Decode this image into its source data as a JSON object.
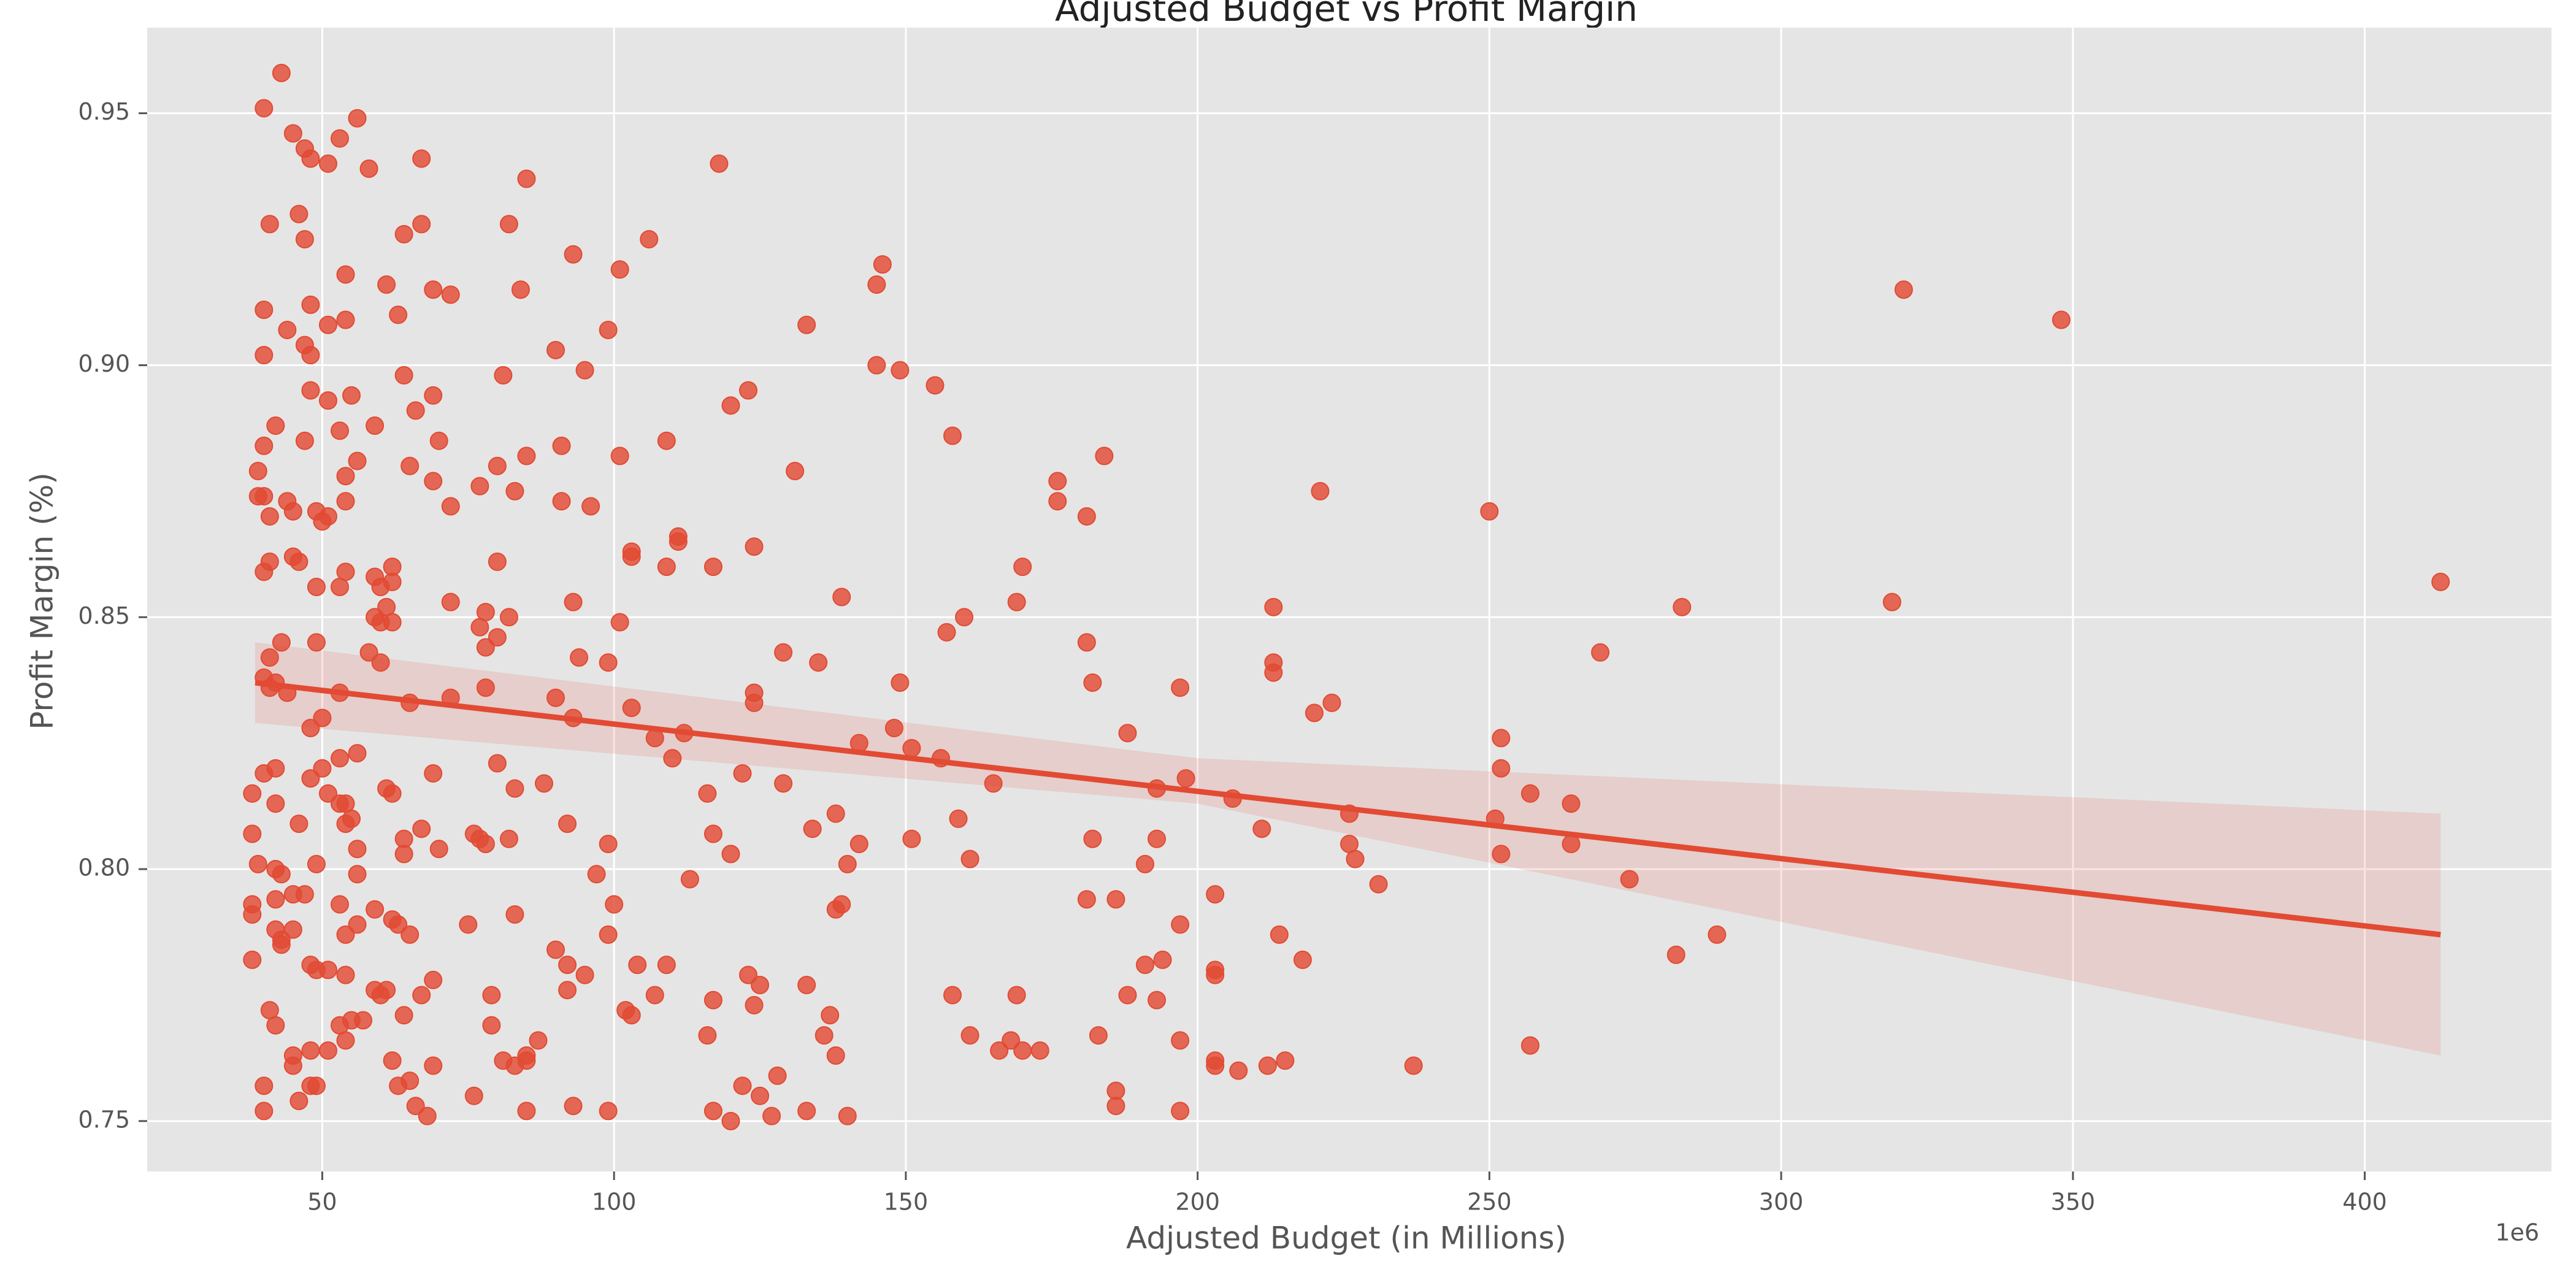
{
  "chart_data": {
    "type": "scatter",
    "title": "Adjusted Budget vs Profit Margin",
    "xlabel": "Adjusted Budget (in Millions)",
    "ylabel": "Profit Margin (%)",
    "x_offset_label": "1e6",
    "xlim": [
      20,
      432
    ],
    "ylim": [
      0.74,
      0.967
    ],
    "x_ticks": [
      50,
      100,
      150,
      200,
      250,
      300,
      350,
      400
    ],
    "y_ticks": [
      0.75,
      0.8,
      0.85,
      0.9,
      0.95
    ],
    "y_tick_labels": [
      "0.75",
      "0.80",
      "0.85",
      "0.90",
      "0.95"
    ],
    "grid": true,
    "colors": {
      "point": "#E24A33",
      "background": "#E5E5E5",
      "grid": "#FFFFFF",
      "band": "#E24A33"
    },
    "regression": {
      "x": [
        38.5,
        413
      ],
      "y": [
        0.837,
        0.787
      ],
      "ci_lower": [
        0.829,
        0.763
      ],
      "ci_upper": [
        0.845,
        0.811
      ],
      "ci_mid_x": 200,
      "ci_mid_lower": [
        0.813
      ],
      "ci_mid_upper": [
        0.822
      ]
    },
    "points": [
      [
        43,
        0.958
      ],
      [
        40,
        0.951
      ],
      [
        56,
        0.949
      ],
      [
        45,
        0.946
      ],
      [
        53,
        0.945
      ],
      [
        47,
        0.943
      ],
      [
        48,
        0.941
      ],
      [
        67,
        0.941
      ],
      [
        51,
        0.94
      ],
      [
        58,
        0.939
      ],
      [
        118,
        0.94
      ],
      [
        85,
        0.937
      ],
      [
        46,
        0.93
      ],
      [
        41,
        0.928
      ],
      [
        67,
        0.928
      ],
      [
        82,
        0.928
      ],
      [
        47,
        0.925
      ],
      [
        64,
        0.926
      ],
      [
        106,
        0.925
      ],
      [
        93,
        0.922
      ],
      [
        101,
        0.919
      ],
      [
        146,
        0.92
      ],
      [
        54,
        0.918
      ],
      [
        61,
        0.916
      ],
      [
        84,
        0.915
      ],
      [
        145,
        0.916
      ],
      [
        69,
        0.915
      ],
      [
        72,
        0.914
      ],
      [
        48,
        0.912
      ],
      [
        40,
        0.911
      ],
      [
        321,
        0.915
      ],
      [
        63,
        0.91
      ],
      [
        348,
        0.909
      ],
      [
        51,
        0.908
      ],
      [
        54,
        0.909
      ],
      [
        133,
        0.908
      ],
      [
        44,
        0.907
      ],
      [
        99,
        0.907
      ],
      [
        47,
        0.904
      ],
      [
        40,
        0.902
      ],
      [
        48,
        0.902
      ],
      [
        90,
        0.903
      ],
      [
        145,
        0.9
      ],
      [
        149,
        0.899
      ],
      [
        64,
        0.898
      ],
      [
        81,
        0.898
      ],
      [
        95,
        0.899
      ],
      [
        48,
        0.895
      ],
      [
        155,
        0.896
      ],
      [
        123,
        0.895
      ],
      [
        69,
        0.894
      ],
      [
        55,
        0.894
      ],
      [
        51,
        0.893
      ],
      [
        120,
        0.892
      ],
      [
        66,
        0.891
      ],
      [
        42,
        0.888
      ],
      [
        59,
        0.888
      ],
      [
        53,
        0.887
      ],
      [
        158,
        0.886
      ],
      [
        47,
        0.885
      ],
      [
        70,
        0.885
      ],
      [
        109,
        0.885
      ],
      [
        40,
        0.884
      ],
      [
        91,
        0.884
      ],
      [
        101,
        0.882
      ],
      [
        85,
        0.882
      ],
      [
        184,
        0.882
      ],
      [
        56,
        0.881
      ],
      [
        65,
        0.88
      ],
      [
        80,
        0.88
      ],
      [
        39,
        0.879
      ],
      [
        131,
        0.879
      ],
      [
        54,
        0.878
      ],
      [
        176,
        0.877
      ],
      [
        69,
        0.877
      ],
      [
        77,
        0.876
      ],
      [
        83,
        0.875
      ],
      [
        39,
        0.874
      ],
      [
        40,
        0.874
      ],
      [
        221,
        0.875
      ],
      [
        44,
        0.873
      ],
      [
        54,
        0.873
      ],
      [
        91,
        0.873
      ],
      [
        96,
        0.872
      ],
      [
        49,
        0.871
      ],
      [
        176,
        0.873
      ],
      [
        72,
        0.872
      ],
      [
        51,
        0.87
      ],
      [
        41,
        0.87
      ],
      [
        50,
        0.869
      ],
      [
        250,
        0.871
      ],
      [
        181,
        0.87
      ],
      [
        45,
        0.871
      ],
      [
        111,
        0.866
      ],
      [
        111,
        0.865
      ],
      [
        124,
        0.864
      ],
      [
        103,
        0.863
      ],
      [
        103,
        0.862
      ],
      [
        45,
        0.862
      ],
      [
        46,
        0.861
      ],
      [
        41,
        0.861
      ],
      [
        80,
        0.861
      ],
      [
        109,
        0.86
      ],
      [
        117,
        0.86
      ],
      [
        170,
        0.86
      ],
      [
        62,
        0.86
      ],
      [
        40,
        0.859
      ],
      [
        54,
        0.859
      ],
      [
        59,
        0.858
      ],
      [
        60,
        0.856
      ],
      [
        62,
        0.857
      ],
      [
        53,
        0.856
      ],
      [
        49,
        0.856
      ],
      [
        139,
        0.854
      ],
      [
        169,
        0.853
      ],
      [
        413,
        0.857
      ],
      [
        93,
        0.853
      ],
      [
        61,
        0.852
      ],
      [
        72,
        0.853
      ],
      [
        213,
        0.852
      ],
      [
        283,
        0.852
      ],
      [
        319,
        0.853
      ],
      [
        78,
        0.851
      ],
      [
        59,
        0.85
      ],
      [
        82,
        0.85
      ],
      [
        160,
        0.85
      ],
      [
        60,
        0.849
      ],
      [
        62,
        0.849
      ],
      [
        77,
        0.848
      ],
      [
        101,
        0.849
      ],
      [
        157,
        0.847
      ],
      [
        43,
        0.845
      ],
      [
        49,
        0.845
      ],
      [
        78,
        0.844
      ],
      [
        80,
        0.846
      ],
      [
        181,
        0.845
      ],
      [
        129,
        0.843
      ],
      [
        269,
        0.843
      ],
      [
        58,
        0.843
      ],
      [
        94,
        0.842
      ],
      [
        99,
        0.841
      ],
      [
        213,
        0.841
      ],
      [
        135,
        0.841
      ],
      [
        60,
        0.841
      ],
      [
        41,
        0.842
      ],
      [
        40,
        0.838
      ],
      [
        42,
        0.837
      ],
      [
        41,
        0.836
      ],
      [
        78,
        0.836
      ],
      [
        149,
        0.837
      ],
      [
        182,
        0.837
      ],
      [
        197,
        0.836
      ],
      [
        213,
        0.839
      ],
      [
        44,
        0.835
      ],
      [
        53,
        0.835
      ],
      [
        124,
        0.835
      ],
      [
        72,
        0.834
      ],
      [
        65,
        0.833
      ],
      [
        90,
        0.834
      ],
      [
        124,
        0.833
      ],
      [
        223,
        0.833
      ],
      [
        103,
        0.832
      ],
      [
        220,
        0.831
      ],
      [
        50,
        0.83
      ],
      [
        93,
        0.83
      ],
      [
        48,
        0.828
      ],
      [
        148,
        0.828
      ],
      [
        188,
        0.827
      ],
      [
        112,
        0.827
      ],
      [
        107,
        0.826
      ],
      [
        142,
        0.825
      ],
      [
        252,
        0.826
      ],
      [
        151,
        0.824
      ],
      [
        53,
        0.822
      ],
      [
        56,
        0.823
      ],
      [
        110,
        0.822
      ],
      [
        156,
        0.822
      ],
      [
        80,
        0.821
      ],
      [
        42,
        0.82
      ],
      [
        40,
        0.819
      ],
      [
        50,
        0.82
      ],
      [
        122,
        0.819
      ],
      [
        252,
        0.82
      ],
      [
        48,
        0.818
      ],
      [
        69,
        0.819
      ],
      [
        88,
        0.817
      ],
      [
        198,
        0.818
      ],
      [
        129,
        0.817
      ],
      [
        165,
        0.817
      ],
      [
        38,
        0.815
      ],
      [
        51,
        0.815
      ],
      [
        61,
        0.816
      ],
      [
        62,
        0.815
      ],
      [
        83,
        0.816
      ],
      [
        116,
        0.815
      ],
      [
        193,
        0.816
      ],
      [
        257,
        0.815
      ],
      [
        54,
        0.813
      ],
      [
        53,
        0.813
      ],
      [
        42,
        0.813
      ],
      [
        264,
        0.813
      ],
      [
        206,
        0.814
      ],
      [
        138,
        0.811
      ],
      [
        159,
        0.81
      ],
      [
        226,
        0.811
      ],
      [
        55,
        0.81
      ],
      [
        46,
        0.809
      ],
      [
        54,
        0.809
      ],
      [
        251,
        0.81
      ],
      [
        92,
        0.809
      ],
      [
        67,
        0.808
      ],
      [
        134,
        0.808
      ],
      [
        211,
        0.808
      ],
      [
        38,
        0.807
      ],
      [
        64,
        0.806
      ],
      [
        76,
        0.807
      ],
      [
        77,
        0.806
      ],
      [
        82,
        0.806
      ],
      [
        117,
        0.807
      ],
      [
        151,
        0.806
      ],
      [
        182,
        0.806
      ],
      [
        193,
        0.806
      ],
      [
        226,
        0.805
      ],
      [
        264,
        0.805
      ],
      [
        99,
        0.805
      ],
      [
        142,
        0.805
      ],
      [
        78,
        0.805
      ],
      [
        56,
        0.804
      ],
      [
        70,
        0.804
      ],
      [
        64,
        0.803
      ],
      [
        252,
        0.803
      ],
      [
        120,
        0.803
      ],
      [
        39,
        0.801
      ],
      [
        49,
        0.801
      ],
      [
        140,
        0.801
      ],
      [
        161,
        0.802
      ],
      [
        191,
        0.801
      ],
      [
        227,
        0.802
      ],
      [
        42,
        0.8
      ],
      [
        43,
        0.799
      ],
      [
        56,
        0.799
      ],
      [
        97,
        0.799
      ],
      [
        113,
        0.798
      ],
      [
        274,
        0.798
      ],
      [
        231,
        0.797
      ],
      [
        47,
        0.795
      ],
      [
        45,
        0.795
      ],
      [
        42,
        0.794
      ],
      [
        100,
        0.793
      ],
      [
        181,
        0.794
      ],
      [
        186,
        0.794
      ],
      [
        203,
        0.795
      ],
      [
        38,
        0.793
      ],
      [
        53,
        0.793
      ],
      [
        38,
        0.791
      ],
      [
        59,
        0.792
      ],
      [
        83,
        0.791
      ],
      [
        139,
        0.793
      ],
      [
        138,
        0.792
      ],
      [
        62,
        0.79
      ],
      [
        63,
        0.789
      ],
      [
        56,
        0.789
      ],
      [
        75,
        0.789
      ],
      [
        197,
        0.789
      ],
      [
        42,
        0.788
      ],
      [
        43,
        0.786
      ],
      [
        45,
        0.788
      ],
      [
        54,
        0.787
      ],
      [
        65,
        0.787
      ],
      [
        99,
        0.787
      ],
      [
        43,
        0.785
      ],
      [
        289,
        0.787
      ],
      [
        214,
        0.787
      ],
      [
        90,
        0.784
      ],
      [
        282,
        0.783
      ],
      [
        38,
        0.782
      ],
      [
        92,
        0.781
      ],
      [
        104,
        0.781
      ],
      [
        109,
        0.781
      ],
      [
        48,
        0.781
      ],
      [
        49,
        0.78
      ],
      [
        51,
        0.78
      ],
      [
        194,
        0.782
      ],
      [
        218,
        0.782
      ],
      [
        191,
        0.781
      ],
      [
        203,
        0.78
      ],
      [
        203,
        0.779
      ],
      [
        54,
        0.779
      ],
      [
        95,
        0.779
      ],
      [
        69,
        0.778
      ],
      [
        123,
        0.779
      ],
      [
        125,
        0.777
      ],
      [
        133,
        0.777
      ],
      [
        59,
        0.776
      ],
      [
        61,
        0.776
      ],
      [
        60,
        0.775
      ],
      [
        67,
        0.775
      ],
      [
        79,
        0.775
      ],
      [
        92,
        0.776
      ],
      [
        107,
        0.775
      ],
      [
        117,
        0.774
      ],
      [
        158,
        0.775
      ],
      [
        169,
        0.775
      ],
      [
        188,
        0.775
      ],
      [
        193,
        0.774
      ],
      [
        102,
        0.772
      ],
      [
        103,
        0.771
      ],
      [
        124,
        0.773
      ],
      [
        137,
        0.771
      ],
      [
        41,
        0.772
      ],
      [
        64,
        0.771
      ],
      [
        42,
        0.769
      ],
      [
        55,
        0.77
      ],
      [
        57,
        0.77
      ],
      [
        79,
        0.769
      ],
      [
        53,
        0.769
      ],
      [
        54,
        0.766
      ],
      [
        87,
        0.766
      ],
      [
        136,
        0.767
      ],
      [
        116,
        0.767
      ],
      [
        161,
        0.767
      ],
      [
        183,
        0.767
      ],
      [
        197,
        0.766
      ],
      [
        168,
        0.766
      ],
      [
        170,
        0.764
      ],
      [
        166,
        0.764
      ],
      [
        173,
        0.764
      ],
      [
        257,
        0.765
      ],
      [
        51,
        0.764
      ],
      [
        48,
        0.764
      ],
      [
        81,
        0.762
      ],
      [
        85,
        0.763
      ],
      [
        138,
        0.763
      ],
      [
        45,
        0.763
      ],
      [
        62,
        0.762
      ],
      [
        45,
        0.761
      ],
      [
        69,
        0.761
      ],
      [
        83,
        0.761
      ],
      [
        85,
        0.762
      ],
      [
        203,
        0.762
      ],
      [
        203,
        0.761
      ],
      [
        212,
        0.761
      ],
      [
        215,
        0.762
      ],
      [
        207,
        0.76
      ],
      [
        237,
        0.761
      ],
      [
        65,
        0.758
      ],
      [
        48,
        0.757
      ],
      [
        49,
        0.757
      ],
      [
        40,
        0.757
      ],
      [
        128,
        0.759
      ],
      [
        122,
        0.757
      ],
      [
        63,
        0.757
      ],
      [
        76,
        0.755
      ],
      [
        186,
        0.756
      ],
      [
        125,
        0.755
      ],
      [
        40,
        0.752
      ],
      [
        46,
        0.754
      ],
      [
        66,
        0.753
      ],
      [
        85,
        0.752
      ],
      [
        93,
        0.753
      ],
      [
        99,
        0.752
      ],
      [
        117,
        0.752
      ],
      [
        133,
        0.752
      ],
      [
        186,
        0.753
      ],
      [
        68,
        0.751
      ],
      [
        127,
        0.751
      ],
      [
        120,
        0.75
      ],
      [
        140,
        0.751
      ],
      [
        197,
        0.752
      ]
    ]
  }
}
